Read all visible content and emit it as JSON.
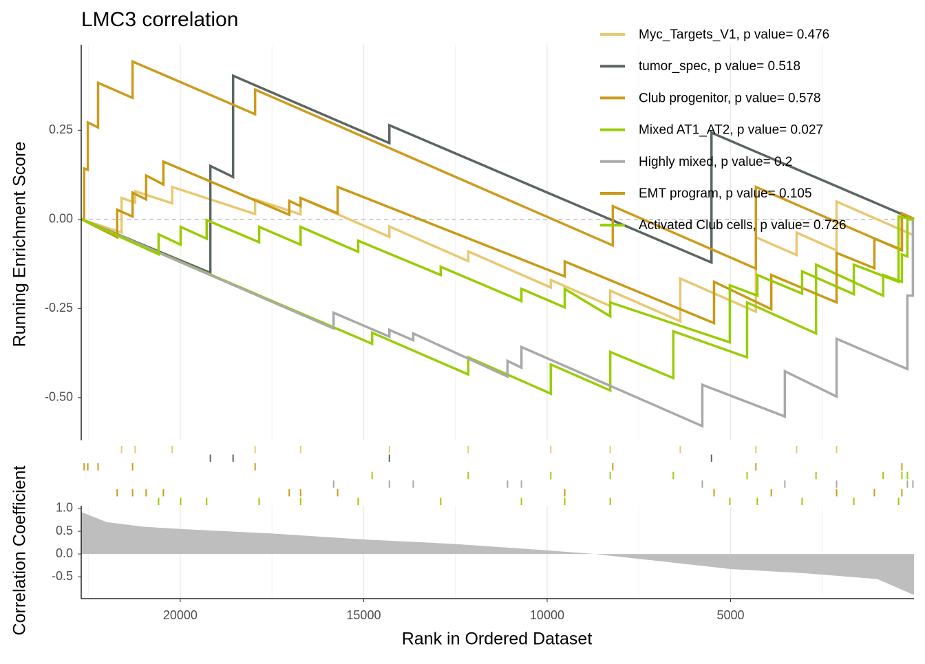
{
  "chart_data": {
    "type": "gsea",
    "title": "LMC3 correlation",
    "x_label": "Rank in Ordered Dataset",
    "y_label": "Running Enrichment Score",
    "xlim": [
      22700,
      0
    ],
    "xticks": [
      20000,
      15000,
      10000,
      5000
    ],
    "xminor": [
      22500,
      17500,
      12500,
      7500,
      2500
    ],
    "ylim": [
      -0.62,
      0.49
    ],
    "yticks": [
      {
        "value": 0.25,
        "label": "0.25"
      },
      {
        "value": 0,
        "label": "0.00"
      },
      {
        "value": -0.25,
        "label": "-0.25"
      },
      {
        "value": -0.5,
        "label": "-0.50"
      }
    ],
    "hline": 0,
    "grid": true,
    "legend": "top-right",
    "series": [
      {
        "name": "Myc_Targets_V1, p value= 0.476",
        "color": "#E8C872",
        "x": [
          22690,
          21600,
          21600,
          21230,
          21230,
          20220,
          20220,
          17960,
          17960,
          16720,
          16720,
          14300,
          14300,
          12150,
          12150,
          9900,
          9900,
          8280,
          8280,
          6370,
          6370,
          4310,
          4310,
          3200,
          3200,
          2110,
          2110,
          0
        ],
        "values": [
          0,
          -0.037,
          0.06,
          0.047,
          0.079,
          0.045,
          0.091,
          0.015,
          0.056,
          0.014,
          0.06,
          -0.049,
          -0.02,
          -0.117,
          -0.09,
          -0.191,
          -0.17,
          -0.243,
          -0.2,
          -0.286,
          -0.166,
          -0.259,
          -0.05,
          -0.1,
          -0.037,
          -0.087,
          0.05,
          -0.045
        ]
      },
      {
        "name": "tumor_spec, p value= 0.518",
        "color": "#5B6663",
        "x": [
          22690,
          19180,
          19180,
          18560,
          18560,
          14300,
          14300,
          5520,
          5520,
          0
        ],
        "values": [
          0,
          -0.15,
          0.15,
          0.119,
          0.403,
          0.214,
          0.264,
          -0.121,
          0.243,
          0
        ]
      },
      {
        "name": "Club progenitor, p value= 0.578",
        "color": "#CD9B1D",
        "x": [
          22690,
          22620,
          22620,
          22520,
          22520,
          22240,
          22240,
          21300,
          21300,
          17960,
          17960,
          8210,
          8210,
          4310,
          4310,
          330,
          330,
          0
        ],
        "values": [
          0,
          0,
          0.143,
          0.139,
          0.272,
          0.258,
          0.383,
          0.341,
          0.443,
          0.295,
          0.364,
          -0.073,
          0.037,
          -0.138,
          0.091,
          -0.087,
          0.017,
          0.002
        ]
      },
      {
        "name": "Mixed AT1_AT2, p value= 0.027",
        "color": "#9ACD0A",
        "x": [
          22690,
          14770,
          14770,
          12150,
          12150,
          9900,
          9900,
          8280,
          8280,
          6560,
          6560,
          4550,
          4550,
          2670,
          2670,
          840,
          840,
          330,
          330,
          180,
          180,
          0
        ],
        "values": [
          0,
          -0.349,
          -0.318,
          -0.435,
          -0.387,
          -0.489,
          -0.407,
          -0.48,
          -0.372,
          -0.445,
          -0.314,
          -0.387,
          -0.233,
          -0.32,
          -0.127,
          -0.214,
          -0.156,
          -0.175,
          -0.098,
          -0.104,
          0,
          0
        ]
      },
      {
        "name": "Highly mixed, p value= 0.2",
        "color": "#A9A9A9",
        "x": [
          22690,
          15820,
          15820,
          14300,
          14300,
          13650,
          13650,
          11080,
          11080,
          10700,
          10700,
          5770,
          5770,
          3520,
          3520,
          2110,
          2110,
          180,
          180,
          30,
          30
        ],
        "values": [
          0,
          -0.306,
          -0.262,
          -0.329,
          -0.31,
          -0.339,
          -0.32,
          -0.441,
          -0.397,
          -0.416,
          -0.358,
          -0.58,
          -0.464,
          -0.553,
          -0.426,
          -0.497,
          -0.335,
          -0.42,
          -0.214,
          -0.214,
          0
        ]
      },
      {
        "name": "EMT program, p value= 0.105",
        "color": "#C99A16",
        "x": [
          22690,
          21720,
          21720,
          21300,
          21300,
          20930,
          20930,
          20460,
          20460,
          17030,
          17030,
          16720,
          16720,
          15710,
          15710,
          9520,
          9520,
          5450,
          5450,
          3890,
          3890,
          2110,
          2110,
          1080,
          1080,
          330,
          330,
          0
        ],
        "values": [
          0,
          -0.05,
          0.027,
          0.008,
          0.075,
          0.056,
          0.123,
          0.098,
          0.162,
          0.013,
          0.052,
          0.037,
          0.06,
          0.017,
          0.091,
          -0.16,
          -0.118,
          -0.291,
          -0.175,
          -0.252,
          -0.156,
          -0.233,
          -0.094,
          -0.137,
          -0.054,
          -0.085,
          0.017,
          0
        ]
      },
      {
        "name": "Activated Club cells, p value= 0.726",
        "color": "#99CC00",
        "x": [
          22690,
          20590,
          20590,
          19990,
          19990,
          19280,
          19280,
          17850,
          17850,
          16720,
          16720,
          15150,
          15150,
          12900,
          12900,
          10700,
          10700,
          9520,
          9520,
          8280,
          8280,
          5020,
          5020,
          4270,
          4270,
          3050,
          3050,
          1640,
          1640,
          420,
          420,
          0
        ],
        "values": [
          0,
          -0.098,
          -0.042,
          -0.071,
          -0.021,
          -0.054,
          -0.002,
          -0.064,
          -0.021,
          -0.071,
          -0.021,
          -0.091,
          -0.06,
          -0.156,
          -0.133,
          -0.229,
          -0.195,
          -0.247,
          -0.195,
          -0.272,
          -0.233,
          -0.345,
          -0.185,
          -0.214,
          -0.156,
          -0.208,
          -0.146,
          -0.21,
          -0.127,
          -0.175,
          0.008,
          0
        ]
      }
    ],
    "correlation": {
      "y_label": "Correlation Coefficient",
      "color": "#BEBEBE",
      "ylim": [
        -0.98,
        1.06
      ],
      "yticks": [
        {
          "value": 1,
          "label": "1.0"
        },
        0.5,
        {
          "value": 0,
          "label": "0.0"
        },
        -0.5
      ],
      "x": [
        22690,
        22000,
        21000,
        20000,
        17500,
        15000,
        12500,
        10000,
        8700,
        7000,
        5000,
        3000,
        1000,
        0
      ],
      "values": [
        0.92,
        0.7,
        0.6,
        0.55,
        0.45,
        0.32,
        0.22,
        0.08,
        0,
        -0.15,
        -0.33,
        -0.42,
        -0.55,
        -0.9
      ]
    }
  }
}
